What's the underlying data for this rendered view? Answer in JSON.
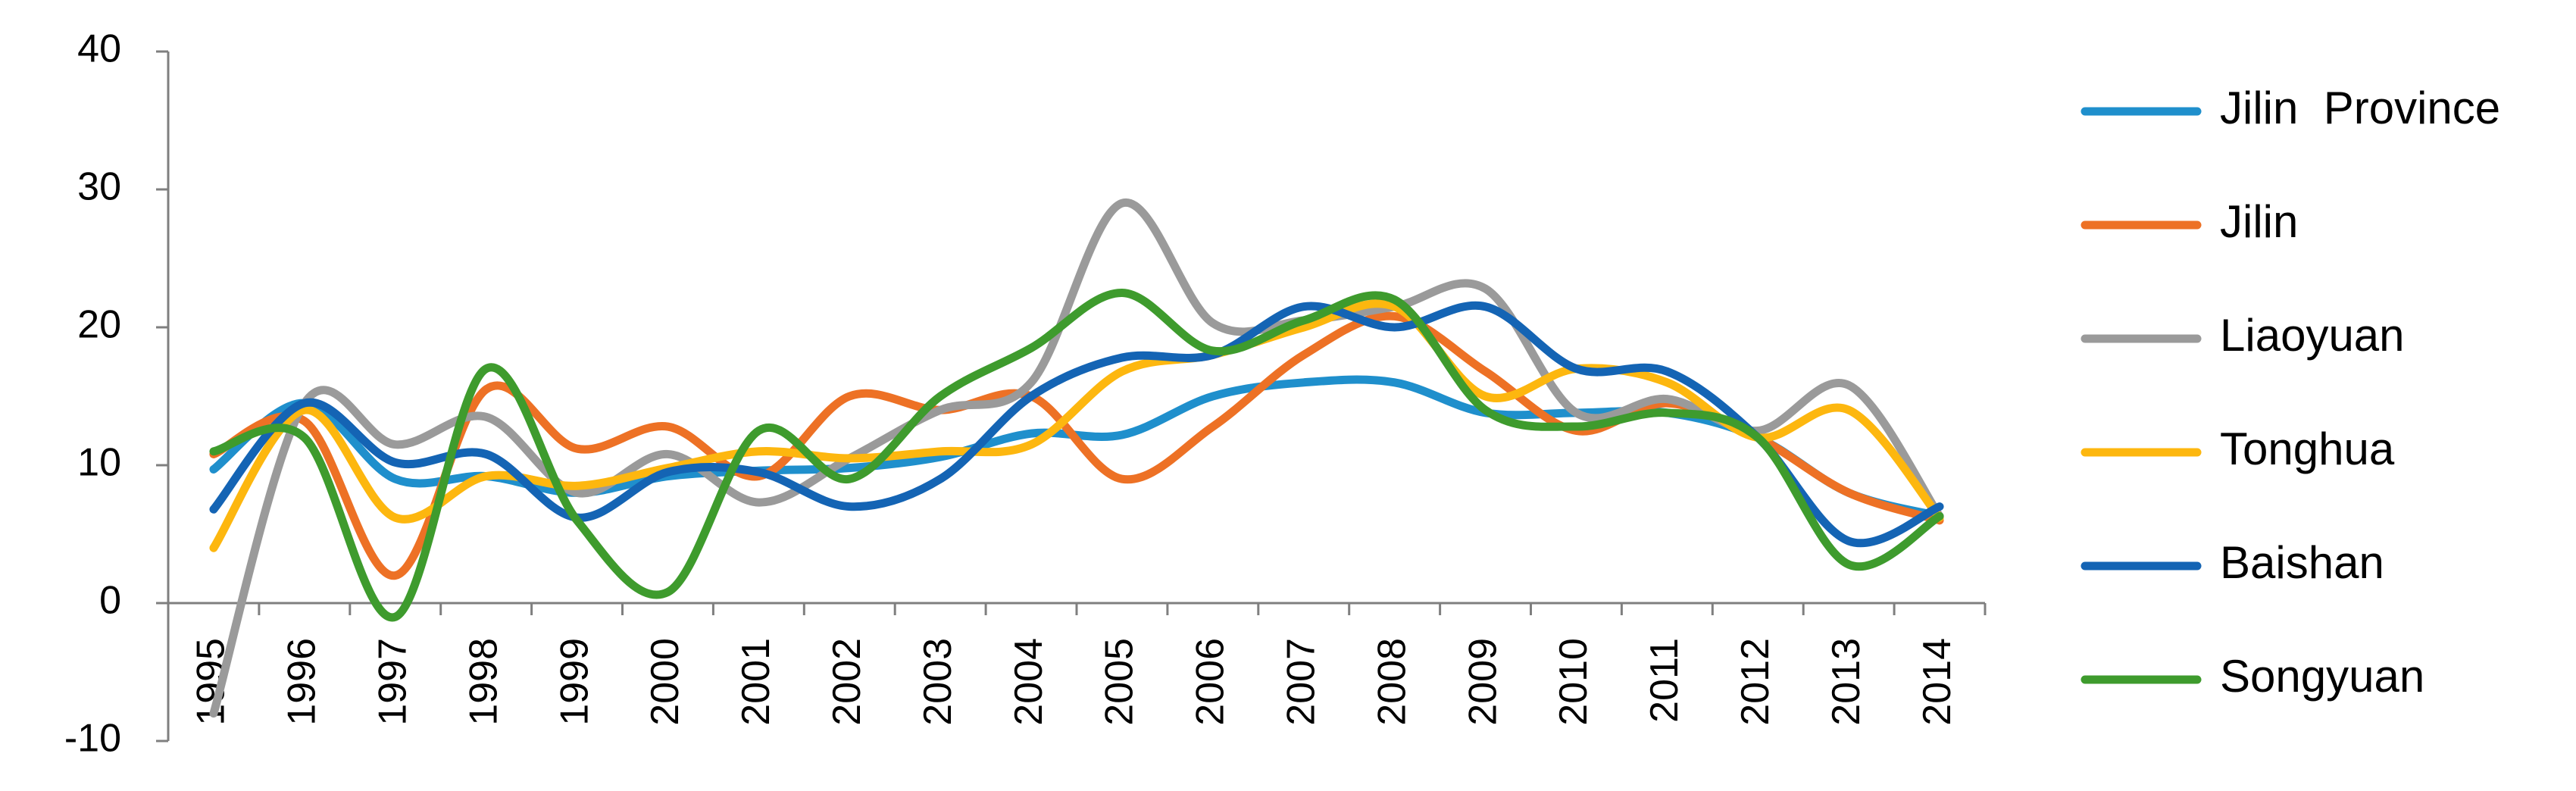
{
  "chart_data": {
    "type": "line",
    "title": "",
    "xlabel": "",
    "ylabel": "",
    "ylim": [
      -10,
      40
    ],
    "yticks": [
      -10,
      0,
      10,
      20,
      30,
      40
    ],
    "grid": false,
    "legend_position": "right",
    "categories": [
      "1995",
      "1996",
      "1997",
      "1998",
      "1999",
      "2000",
      "2001",
      "2002",
      "2003",
      "2004",
      "2005",
      "2006",
      "2007",
      "2008",
      "2009",
      "2010",
      "2011",
      "2012",
      "2013",
      "2014"
    ],
    "series": [
      {
        "name": "Jilin  Province",
        "color": "#1f8fcc",
        "values": [
          9.7,
          14.5,
          9.0,
          9.2,
          8.0,
          9.2,
          9.6,
          9.8,
          10.6,
          12.3,
          12.2,
          15.0,
          16.0,
          16.0,
          13.8,
          13.8,
          13.8,
          12.0,
          8.0,
          6.3
        ]
      },
      {
        "name": "Jilin",
        "color": "#ed7125",
        "values": [
          10.8,
          13.2,
          2.0,
          15.5,
          11.2,
          12.8,
          9.2,
          15.0,
          14.0,
          15.0,
          9.0,
          12.8,
          18.0,
          20.8,
          16.8,
          12.5,
          14.5,
          12.0,
          8.0,
          6.0
        ]
      },
      {
        "name": "Liaoyuan",
        "color": "#9a9a9a",
        "values": [
          -8.0,
          14.5,
          11.5,
          13.5,
          8.0,
          10.8,
          7.3,
          10.5,
          14.0,
          16.0,
          29.0,
          20.3,
          20.5,
          21.5,
          22.8,
          13.8,
          14.8,
          12.5,
          15.8,
          6.3
        ]
      },
      {
        "name": "Tonghua",
        "color": "#fdb70f",
        "values": [
          4.0,
          14.0,
          6.2,
          9.2,
          8.5,
          9.8,
          11.0,
          10.5,
          11.0,
          11.5,
          16.8,
          18.0,
          20.0,
          21.5,
          15.0,
          17.0,
          16.0,
          12.0,
          14.0,
          6.2
        ]
      },
      {
        "name": "Baishan",
        "color": "#1464b4",
        "values": [
          6.8,
          14.5,
          10.2,
          10.8,
          6.2,
          9.5,
          9.5,
          7.0,
          9.0,
          15.0,
          17.8,
          18.0,
          21.5,
          20.0,
          21.5,
          17.0,
          16.8,
          12.0,
          4.5,
          7.0
        ]
      },
      {
        "name": "Songyuan",
        "color": "#3e9b2d",
        "values": [
          11.0,
          12.0,
          -1.0,
          17.0,
          6.0,
          0.8,
          12.5,
          9.0,
          15.0,
          18.5,
          22.5,
          18.3,
          20.5,
          22.0,
          14.0,
          12.8,
          13.8,
          12.0,
          2.8,
          6.3
        ]
      }
    ]
  }
}
